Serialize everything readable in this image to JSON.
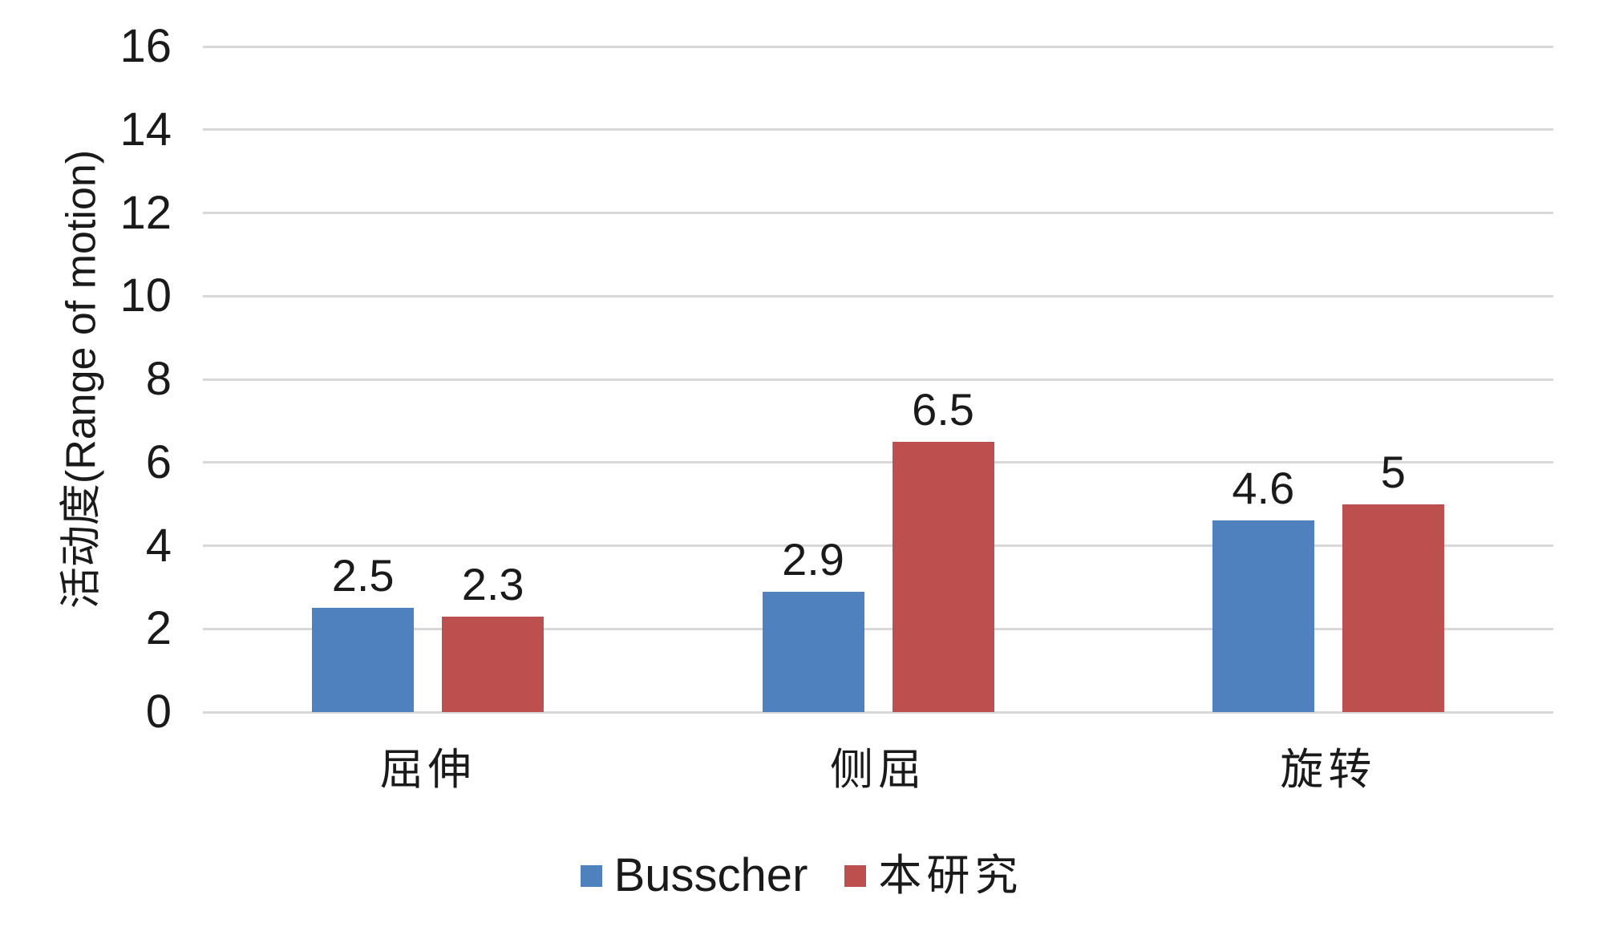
{
  "chart_data": {
    "type": "bar",
    "categories": [
      "屈伸",
      "侧屈",
      "旋转"
    ],
    "series": [
      {
        "name": "Busscher",
        "color": "#4e81bd",
        "values": [
          2.5,
          2.9,
          4.6
        ],
        "labels": [
          "2.5",
          "2.9",
          "4.6"
        ]
      },
      {
        "name": "本研究",
        "color": "#be4f4f",
        "values": [
          2.3,
          6.5,
          5.0
        ],
        "labels": [
          "2.3",
          "6.5",
          "5"
        ]
      }
    ],
    "title": "",
    "xlabel": "",
    "ylabel": "活动度(Range of motion)",
    "ylim": [
      0,
      16
    ],
    "ytick_step": 2,
    "yticks": [
      "0",
      "2",
      "4",
      "6",
      "8",
      "10",
      "12",
      "14",
      "16"
    ],
    "grid": true,
    "legend_position": "bottom"
  },
  "colors": {
    "background": "#ffffff",
    "gridline": "#d8d8d8",
    "text": "#1a1a1a",
    "series_blue": "#4e81bd",
    "series_red": "#be4f4f"
  }
}
